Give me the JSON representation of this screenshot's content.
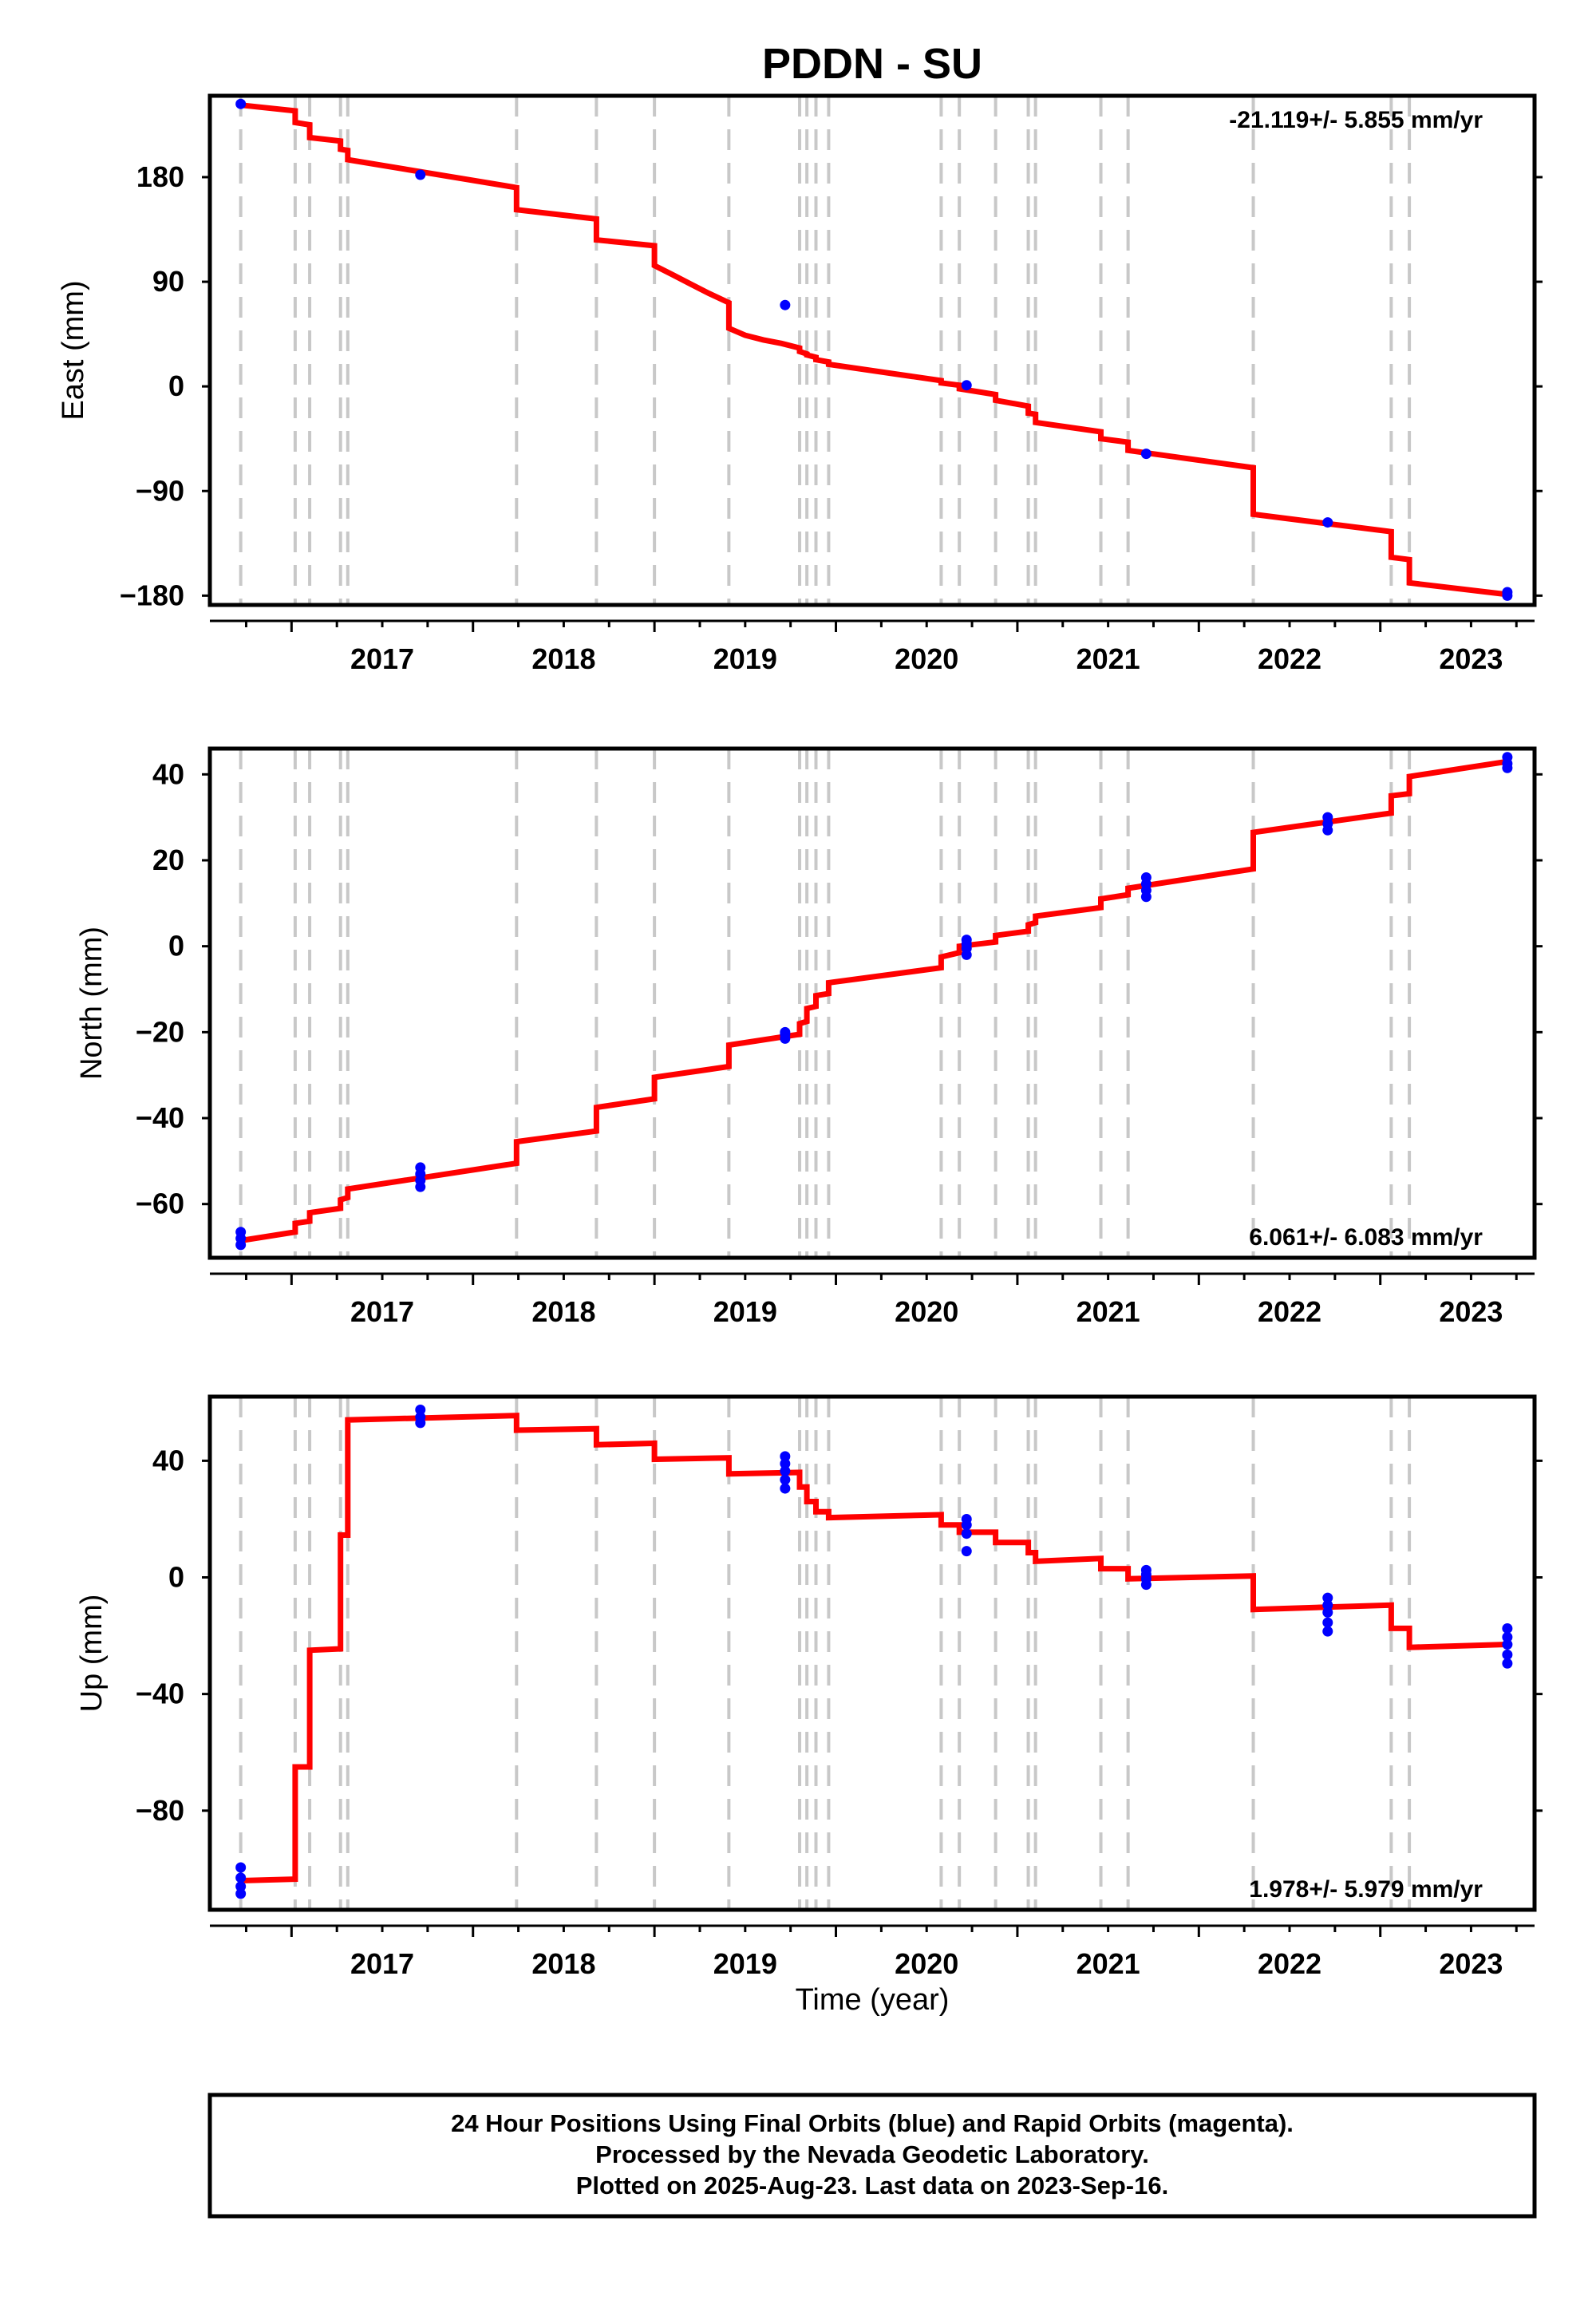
{
  "chart_data": {
    "title": "PDDN - SU",
    "type": "line",
    "xlabel": "Time (year)",
    "x_ticks": [
      2017,
      2018,
      2019,
      2020,
      2021,
      2022,
      2023
    ],
    "xlim": [
      2016.55,
      2023.85
    ],
    "colors": {
      "model": "#ff0000",
      "final_orbits": "#0000ff",
      "events": "#c8c8c8"
    },
    "event_lines": [
      2016.72,
      2017.02,
      2017.1,
      2017.27,
      2017.31,
      2018.24,
      2018.68,
      2019.0,
      2019.41,
      2019.8,
      2019.84,
      2019.89,
      2019.96,
      2020.58,
      2020.68,
      2020.88,
      2021.06,
      2021.1,
      2021.46,
      2021.61,
      2022.3,
      2023.06,
      2023.16
    ],
    "panels": [
      {
        "ylabel": "East (mm)",
        "ylim": [
          -188,
          250
        ],
        "y_ticks": [
          180,
          90,
          0,
          -90,
          -180
        ],
        "y_tick_labels": [
          "180",
          "90",
          "0",
          "−90",
          "−180"
        ],
        "rate": "-21.119+/- 5.855 mm/yr",
        "rate_position": "top-right",
        "model_line": [
          [
            2016.72,
            242
          ],
          [
            2017.02,
            237
          ],
          [
            2017.02,
            227
          ],
          [
            2017.1,
            225
          ],
          [
            2017.1,
            214
          ],
          [
            2017.27,
            211
          ],
          [
            2017.27,
            204
          ],
          [
            2017.31,
            203
          ],
          [
            2017.31,
            195
          ],
          [
            2018.24,
            171
          ],
          [
            2018.24,
            152
          ],
          [
            2018.68,
            144
          ],
          [
            2018.68,
            126
          ],
          [
            2019.0,
            121
          ],
          [
            2019.0,
            104
          ],
          [
            2019.1,
            96
          ],
          [
            2019.2,
            88
          ],
          [
            2019.3,
            80
          ],
          [
            2019.41,
            72
          ],
          [
            2019.41,
            50
          ],
          [
            2019.5,
            44
          ],
          [
            2019.6,
            40
          ],
          [
            2019.7,
            37
          ],
          [
            2019.8,
            33
          ],
          [
            2019.8,
            30
          ],
          [
            2019.84,
            28
          ],
          [
            2019.84,
            27
          ],
          [
            2019.89,
            25
          ],
          [
            2019.89,
            23
          ],
          [
            2019.96,
            21
          ],
          [
            2019.96,
            19
          ],
          [
            2020.58,
            5
          ],
          [
            2020.58,
            3
          ],
          [
            2020.68,
            1
          ],
          [
            2020.68,
            -2
          ],
          [
            2020.88,
            -7
          ],
          [
            2020.88,
            -12
          ],
          [
            2021.06,
            -17
          ],
          [
            2021.06,
            -23
          ],
          [
            2021.1,
            -24
          ],
          [
            2021.1,
            -31
          ],
          [
            2021.46,
            -39
          ],
          [
            2021.46,
            -45
          ],
          [
            2021.61,
            -48
          ],
          [
            2021.61,
            -55
          ],
          [
            2022.3,
            -70
          ],
          [
            2022.3,
            -110
          ],
          [
            2023.06,
            -125
          ],
          [
            2023.06,
            -147
          ],
          [
            2023.16,
            -149
          ],
          [
            2023.16,
            -169
          ],
          [
            2023.7,
            -179
          ]
        ],
        "points": [
          [
            2016.72,
            243
          ],
          [
            2017.71,
            182
          ],
          [
            2019.72,
            70
          ],
          [
            2020.72,
            1
          ],
          [
            2021.71,
            -58
          ],
          [
            2022.71,
            -117
          ],
          [
            2023.7,
            -177
          ],
          [
            2023.7,
            -180
          ]
        ]
      },
      {
        "ylabel": "North (mm)",
        "ylim": [
          -72.5,
          46
        ],
        "y_ticks": [
          40,
          20,
          0,
          -20,
          -40,
          -60
        ],
        "y_tick_labels": [
          "40",
          "20",
          "0",
          "−20",
          "−40",
          "−60"
        ],
        "rate": "6.061+/- 6.083 mm/yr",
        "rate_position": "bottom-right",
        "model_line": [
          [
            2016.72,
            -68.5
          ],
          [
            2017.02,
            -66.5
          ],
          [
            2017.02,
            -64.5
          ],
          [
            2017.1,
            -64
          ],
          [
            2017.1,
            -62
          ],
          [
            2017.27,
            -61
          ],
          [
            2017.27,
            -59
          ],
          [
            2017.31,
            -58.5
          ],
          [
            2017.31,
            -56.5
          ],
          [
            2018.24,
            -50.5
          ],
          [
            2018.24,
            -45.5
          ],
          [
            2018.68,
            -43
          ],
          [
            2018.68,
            -37.5
          ],
          [
            2019.0,
            -35.5
          ],
          [
            2019.0,
            -30.5
          ],
          [
            2019.41,
            -28
          ],
          [
            2019.41,
            -23
          ],
          [
            2019.8,
            -20.5
          ],
          [
            2019.8,
            -18
          ],
          [
            2019.84,
            -17.5
          ],
          [
            2019.84,
            -14.5
          ],
          [
            2019.89,
            -14
          ],
          [
            2019.89,
            -11.5
          ],
          [
            2019.96,
            -11
          ],
          [
            2019.96,
            -8.5
          ],
          [
            2020.58,
            -5
          ],
          [
            2020.58,
            -2.5
          ],
          [
            2020.68,
            -1.5
          ],
          [
            2020.68,
            0
          ],
          [
            2020.88,
            1
          ],
          [
            2020.88,
            2.5
          ],
          [
            2021.06,
            3.5
          ],
          [
            2021.06,
            5
          ],
          [
            2021.1,
            5.5
          ],
          [
            2021.1,
            7
          ],
          [
            2021.46,
            9
          ],
          [
            2021.46,
            11
          ],
          [
            2021.61,
            12
          ],
          [
            2021.61,
            13.5
          ],
          [
            2022.3,
            18
          ],
          [
            2022.3,
            26.5
          ],
          [
            2023.06,
            31
          ],
          [
            2023.06,
            35
          ],
          [
            2023.16,
            35.5
          ],
          [
            2023.16,
            39.5
          ],
          [
            2023.7,
            43
          ]
        ],
        "points": [
          [
            2016.72,
            -66.5
          ],
          [
            2016.72,
            -68
          ],
          [
            2016.72,
            -69.5
          ],
          [
            2017.71,
            -51.5
          ],
          [
            2017.71,
            -53
          ],
          [
            2017.71,
            -54.5
          ],
          [
            2017.71,
            -56
          ],
          [
            2019.72,
            -20
          ],
          [
            2019.72,
            -20.5
          ],
          [
            2019.72,
            -21.5
          ],
          [
            2020.72,
            1.5
          ],
          [
            2020.72,
            0.5
          ],
          [
            2020.72,
            -0.5
          ],
          [
            2020.72,
            -2
          ],
          [
            2021.71,
            16
          ],
          [
            2021.71,
            14.5
          ],
          [
            2021.71,
            13
          ],
          [
            2021.71,
            11.5
          ],
          [
            2022.71,
            30
          ],
          [
            2022.71,
            28.5
          ],
          [
            2022.71,
            27
          ],
          [
            2023.7,
            44
          ],
          [
            2023.7,
            42.5
          ],
          [
            2023.7,
            41.5
          ]
        ]
      },
      {
        "ylabel": "Up (mm)",
        "ylim": [
          -114,
          62
        ],
        "y_ticks": [
          40,
          0,
          -40,
          -80
        ],
        "y_tick_labels": [
          "40",
          "0",
          "−40",
          "−80"
        ],
        "rate": "1.978+/- 5.979 mm/yr",
        "rate_position": "bottom-right",
        "model_line": [
          [
            2016.72,
            -104
          ],
          [
            2017.02,
            -103.5
          ],
          [
            2017.02,
            -65
          ],
          [
            2017.1,
            -65
          ],
          [
            2017.1,
            -25
          ],
          [
            2017.27,
            -24.5
          ],
          [
            2017.27,
            14.5
          ],
          [
            2017.31,
            14.5
          ],
          [
            2017.31,
            54
          ],
          [
            2018.24,
            55.5
          ],
          [
            2018.24,
            50.5
          ],
          [
            2018.68,
            51
          ],
          [
            2018.68,
            45.5
          ],
          [
            2019.0,
            46
          ],
          [
            2019.0,
            40.5
          ],
          [
            2019.41,
            41
          ],
          [
            2019.41,
            35.5
          ],
          [
            2019.8,
            36
          ],
          [
            2019.8,
            31
          ],
          [
            2019.84,
            31
          ],
          [
            2019.84,
            26
          ],
          [
            2019.89,
            26
          ],
          [
            2019.89,
            22.5
          ],
          [
            2019.96,
            22.5
          ],
          [
            2019.96,
            20.5
          ],
          [
            2020.58,
            21.5
          ],
          [
            2020.58,
            18
          ],
          [
            2020.68,
            18
          ],
          [
            2020.68,
            15.5
          ],
          [
            2020.88,
            15.5
          ],
          [
            2020.88,
            12
          ],
          [
            2021.06,
            12
          ],
          [
            2021.06,
            8.5
          ],
          [
            2021.1,
            8.5
          ],
          [
            2021.1,
            5.5
          ],
          [
            2021.46,
            6.5
          ],
          [
            2021.46,
            3
          ],
          [
            2021.61,
            3
          ],
          [
            2021.61,
            -0.5
          ],
          [
            2022.3,
            0.5
          ],
          [
            2022.3,
            -11
          ],
          [
            2023.06,
            -9.5
          ],
          [
            2023.06,
            -17.5
          ],
          [
            2023.16,
            -17.5
          ],
          [
            2023.16,
            -24
          ],
          [
            2023.7,
            -23
          ]
        ],
        "points": [
          [
            2016.72,
            -99.5
          ],
          [
            2016.72,
            -103
          ],
          [
            2016.72,
            -106
          ],
          [
            2016.72,
            -108.5
          ],
          [
            2017.71,
            57.5
          ],
          [
            2017.71,
            55
          ],
          [
            2017.71,
            53
          ],
          [
            2019.72,
            41.5
          ],
          [
            2019.72,
            39
          ],
          [
            2019.72,
            36.5
          ],
          [
            2019.72,
            33.5
          ],
          [
            2019.72,
            30.5
          ],
          [
            2020.72,
            20
          ],
          [
            2020.72,
            18
          ],
          [
            2020.72,
            15
          ],
          [
            2020.72,
            9
          ],
          [
            2021.71,
            2.5
          ],
          [
            2021.71,
            1
          ],
          [
            2021.71,
            -0.5
          ],
          [
            2021.71,
            -2.5
          ],
          [
            2022.71,
            -7
          ],
          [
            2022.71,
            -9.5
          ],
          [
            2022.71,
            -12
          ],
          [
            2022.71,
            -15.5
          ],
          [
            2022.71,
            -18.5
          ],
          [
            2023.7,
            -17.5
          ],
          [
            2023.7,
            -20.5
          ],
          [
            2023.7,
            -23
          ],
          [
            2023.7,
            -26.5
          ],
          [
            2023.7,
            -29.5
          ]
        ]
      }
    ]
  },
  "footer": {
    "line1": "24 Hour Positions Using Final Orbits (blue) and Rapid Orbits (magenta).",
    "line2": "Processed by the Nevada Geodetic Laboratory.",
    "line3": "Plotted on 2025-Aug-23. Last data on 2023-Sep-16."
  }
}
